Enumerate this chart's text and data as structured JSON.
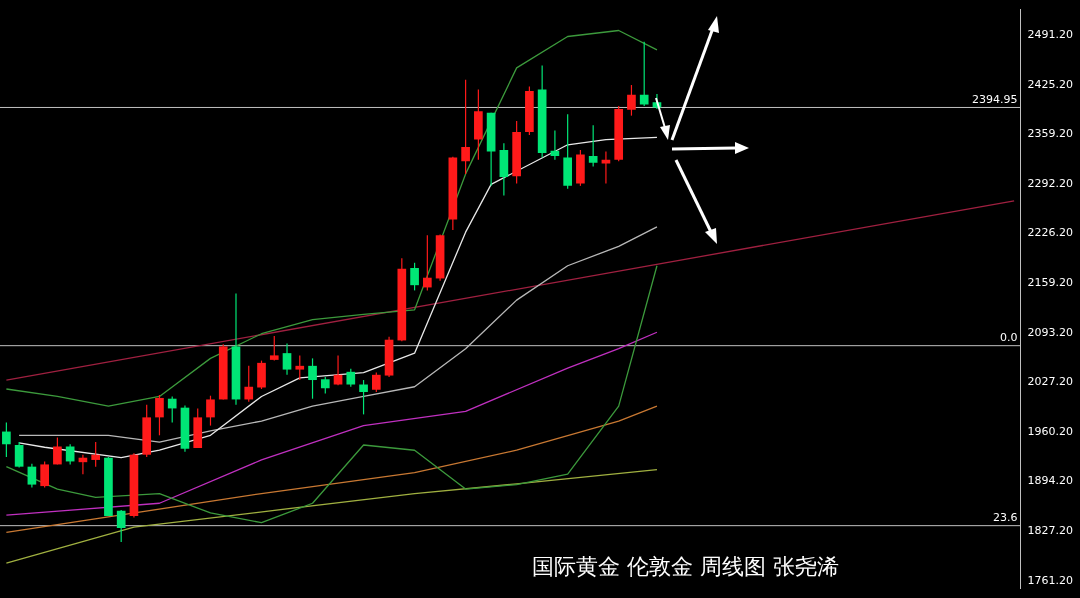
{
  "chart_data": {
    "type": "candlestick",
    "categories": [
      null,
      null,
      null,
      null,
      null,
      null,
      null,
      null,
      null,
      null,
      null,
      null,
      null,
      null,
      null,
      null,
      null,
      null,
      null,
      null,
      null,
      null,
      null,
      null,
      null,
      null,
      null,
      null,
      null,
      null,
      null,
      null,
      null,
      null,
      null,
      null,
      null,
      null,
      null,
      null,
      null,
      null,
      null,
      null,
      null,
      null,
      null,
      null,
      null,
      null,
      null,
      null,
      null,
      null,
      null,
      null,
      null,
      null,
      null,
      null,
      null,
      null,
      null,
      null,
      null,
      null,
      null,
      null,
      null,
      null,
      null,
      null,
      null,
      null,
      null,
      null,
      null,
      null,
      null,
      null
    ],
    "ohlc": [
      [
        1961,
        1973,
        1927,
        1944
      ],
      [
        1943,
        1947,
        1913,
        1914
      ],
      [
        1914,
        1918,
        1886,
        1890
      ],
      [
        1888,
        1921,
        1886,
        1917
      ],
      [
        1917,
        1953,
        1917,
        1941
      ],
      [
        1941,
        1944,
        1917,
        1921
      ],
      [
        1920,
        1930,
        1904,
        1926
      ],
      [
        1923,
        1947,
        1914,
        1930
      ],
      [
        1926,
        1927,
        1848,
        1848
      ],
      [
        1855,
        1856,
        1813,
        1832
      ],
      [
        1848,
        1932,
        1846,
        1930
      ],
      [
        1930,
        1997,
        1927,
        1980
      ],
      [
        1980,
        2010,
        1956,
        2006
      ],
      [
        2005,
        2008,
        1973,
        1992
      ],
      [
        1993,
        1996,
        1934,
        1938
      ],
      [
        1939,
        1992,
        1939,
        1980
      ],
      [
        1980,
        2009,
        1969,
        2004
      ],
      [
        2004,
        2078,
        2004,
        2075
      ],
      [
        2075,
        2146,
        1997,
        2004
      ],
      [
        2004,
        2049,
        2001,
        2021
      ],
      [
        2020,
        2056,
        2018,
        2053
      ],
      [
        2057,
        2089,
        2056,
        2063
      ],
      [
        2066,
        2079,
        2037,
        2044
      ],
      [
        2044,
        2063,
        2030,
        2049
      ],
      [
        2049,
        2059,
        2005,
        2030
      ],
      [
        2031,
        2034,
        2012,
        2019
      ],
      [
        2024,
        2063,
        2023,
        2037
      ],
      [
        2041,
        2045,
        2021,
        2024
      ],
      [
        2024,
        2030,
        1984,
        2014
      ],
      [
        2017,
        2040,
        2014,
        2037
      ],
      [
        2036,
        2088,
        2034,
        2084
      ],
      [
        2083,
        2193,
        2082,
        2179
      ],
      [
        2180,
        2187,
        2150,
        2157
      ],
      [
        2154,
        2224,
        2150,
        2167
      ],
      [
        2166,
        2225,
        2163,
        2224
      ],
      [
        2245,
        2329,
        2231,
        2328
      ],
      [
        2323,
        2432,
        2306,
        2342
      ],
      [
        2352,
        2419,
        2325,
        2390
      ],
      [
        2388,
        2388,
        2290,
        2336
      ],
      [
        2338,
        2347,
        2277,
        2302
      ],
      [
        2303,
        2377,
        2293,
        2362
      ],
      [
        2362,
        2423,
        2358,
        2417
      ],
      [
        2419,
        2451,
        2328,
        2334
      ],
      [
        2337,
        2364,
        2325,
        2330
      ],
      [
        2328,
        2386,
        2286,
        2290
      ],
      [
        2293,
        2338,
        2290,
        2332
      ],
      [
        2330,
        2371,
        2316,
        2321
      ],
      [
        2320,
        2336,
        2293,
        2325
      ],
      [
        2325,
        2397,
        2323,
        2393
      ],
      [
        2392,
        2425,
        2384,
        2412
      ],
      [
        2412,
        2483,
        2397,
        2399
      ],
      [
        2402,
        2413,
        2393,
        2395
      ],
      null,
      null,
      null,
      null,
      null,
      null,
      null,
      null,
      null,
      null,
      null,
      null,
      null,
      null,
      null,
      null,
      null,
      null,
      null,
      null,
      null,
      null,
      null,
      null,
      null,
      null,
      null,
      null
    ],
    "colors": [
      "#00e676",
      "#00e676",
      "#00e676",
      "#ff1a1a",
      "#ff1a1a",
      "#00e676",
      "#ff1a1a",
      "#ff1a1a",
      "#00e676",
      "#00e676",
      "#ff1a1a",
      "#ff1a1a",
      "#ff1a1a",
      "#00e676",
      "#00e676",
      "#ff1a1a",
      "#ff1a1a",
      "#ff1a1a",
      "#00e676",
      "#ff1a1a",
      "#ff1a1a",
      "#ff1a1a",
      "#00e676",
      "#ff1a1a",
      "#00e676",
      "#00e676",
      "#ff1a1a",
      "#00e676",
      "#00e676",
      "#ff1a1a",
      "#ff1a1a",
      "#ff1a1a",
      "#00e676",
      "#ff1a1a",
      "#ff1a1a",
      "#ff1a1a",
      "#ff1a1a",
      "#ff1a1a",
      "#00e676",
      "#00e676",
      "#ff1a1a",
      "#ff1a1a",
      "#00e676",
      "#00e676",
      "#00e676",
      "#ff1a1a",
      "#00e676",
      "#ff1a1a",
      "#ff1a1a",
      "#ff1a1a",
      "#00e676",
      "#00e676",
      null,
      null,
      null,
      null,
      null,
      null,
      null,
      null,
      null,
      null,
      null,
      null,
      null,
      null,
      null,
      null,
      null,
      null,
      null,
      null,
      null,
      null,
      null,
      null,
      null,
      null,
      null,
      null
    ],
    "series": [
      {
        "type": "line",
        "color": "#e8e8e8",
        "values": [
          null,
          1946,
          null,
          1940,
          null,
          null,
          null,
          null,
          null,
          1926,
          null,
          null,
          1936,
          null,
          null,
          null,
          1956,
          null,
          null,
          null,
          2008,
          null,
          null,
          2033,
          null,
          null,
          null,
          null,
          2040,
          null,
          null,
          null,
          2066,
          null,
          null,
          null,
          2228,
          null,
          2292,
          null,
          null,
          null,
          null,
          null,
          2345,
          null,
          null,
          2352,
          null,
          null,
          null,
          2355,
          null,
          null,
          null,
          null,
          null,
          null,
          null,
          null,
          null,
          null,
          null,
          null,
          null,
          null,
          null,
          null,
          null,
          null,
          null,
          null,
          null,
          null,
          null,
          null,
          null,
          null,
          null,
          null
        ]
      },
      {
        "type": "line",
        "color": "#b8b8b8",
        "values": [
          null,
          1956,
          null,
          null,
          1956,
          null,
          null,
          null,
          1956,
          null,
          null,
          null,
          1947,
          null,
          null,
          null,
          1962,
          null,
          null,
          null,
          1975,
          null,
          null,
          null,
          1995,
          null,
          null,
          null,
          2008,
          null,
          null,
          null,
          2021,
          null,
          null,
          null,
          2072,
          null,
          null,
          null,
          2137,
          null,
          null,
          null,
          2183,
          null,
          null,
          null,
          2209,
          null,
          null,
          2235,
          null,
          null,
          null,
          null,
          null,
          null,
          null,
          null,
          null,
          null,
          null,
          null,
          null,
          null,
          null,
          null,
          null,
          null,
          null,
          null,
          null,
          null,
          null,
          null,
          null,
          null,
          null,
          null
        ]
      },
      {
        "type": "line",
        "color": "#3c9a3c",
        "values": [
          2018,
          null,
          null,
          null,
          2008,
          null,
          null,
          null,
          1995,
          null,
          null,
          null,
          2008,
          null,
          null,
          null,
          2059,
          null,
          null,
          null,
          2092,
          null,
          null,
          null,
          2111,
          null,
          null,
          null,
          2118,
          null,
          null,
          null,
          2124,
          null,
          null,
          null,
          2306,
          null,
          null,
          null,
          2448,
          null,
          null,
          null,
          2490,
          null,
          null,
          null,
          2498,
          null,
          null,
          2472,
          null,
          null,
          null,
          null,
          null,
          null,
          null,
          null,
          null,
          null,
          null,
          null,
          null,
          null,
          null,
          null,
          null,
          null,
          null,
          null,
          null,
          null,
          null,
          null,
          null,
          null,
          null,
          null
        ]
      },
      {
        "type": "line",
        "color": "#3c9a3c",
        "values": [
          1914,
          null,
          null,
          null,
          1884,
          null,
          null,
          1873,
          null,
          null,
          null,
          null,
          1878,
          null,
          null,
          null,
          1852,
          null,
          null,
          null,
          1839,
          null,
          null,
          null,
          1865,
          null,
          null,
          null,
          1943,
          null,
          null,
          null,
          1936,
          null,
          null,
          null,
          1884,
          null,
          null,
          null,
          1890,
          null,
          null,
          null,
          1904,
          null,
          null,
          null,
          1995,
          null,
          null,
          2183,
          null,
          null,
          null,
          null,
          null,
          null,
          null,
          null,
          null,
          null,
          null,
          null,
          null,
          null,
          null,
          null,
          null,
          null,
          null,
          null,
          null,
          null,
          null,
          null,
          null,
          null,
          null,
          null
        ]
      },
      {
        "type": "line",
        "color": "#c030c0",
        "values": [
          1849,
          null,
          null,
          null,
          null,
          null,
          null,
          null,
          null,
          null,
          null,
          null,
          1865,
          null,
          null,
          null,
          null,
          null,
          null,
          null,
          1923,
          null,
          null,
          null,
          null,
          null,
          null,
          null,
          1969,
          null,
          null,
          null,
          null,
          null,
          null,
          null,
          1988,
          null,
          null,
          null,
          null,
          null,
          null,
          null,
          2046,
          null,
          null,
          null,
          2072,
          null,
          null,
          2094,
          null,
          null,
          null,
          null,
          null,
          null,
          null,
          null,
          null,
          null,
          null,
          null,
          null,
          null,
          null,
          null,
          null,
          null,
          null,
          null,
          null,
          null,
          null,
          null,
          null,
          null,
          null,
          null
        ]
      },
      {
        "type": "line",
        "color": "#c87832",
        "values": [
          1826,
          null,
          null,
          null,
          null,
          null,
          null,
          null,
          null,
          null,
          null,
          null,
          null,
          null,
          null,
          null,
          null,
          null,
          null,
          null,
          1878,
          null,
          null,
          null,
          null,
          null,
          null,
          null,
          null,
          null,
          null,
          null,
          1906,
          null,
          null,
          null,
          null,
          null,
          null,
          null,
          1936,
          null,
          null,
          null,
          null,
          null,
          null,
          null,
          1975,
          null,
          null,
          1995,
          null,
          null,
          null,
          null,
          null,
          null,
          null,
          null,
          null,
          null,
          null,
          null,
          null,
          null,
          null,
          null,
          null,
          null,
          null,
          null,
          null,
          null,
          null,
          null,
          null,
          null,
          null,
          null
        ]
      },
      {
        "type": "line",
        "color": "#a0b040",
        "values": [
          1785,
          null,
          null,
          null,
          null,
          null,
          null,
          null,
          null,
          null,
          1833,
          null,
          null,
          null,
          null,
          null,
          null,
          null,
          null,
          null,
          null,
          null,
          null,
          null,
          null,
          null,
          null,
          null,
          null,
          null,
          null,
          null,
          1878,
          null,
          null,
          null,
          null,
          null,
          null,
          null,
          1891,
          null,
          null,
          null,
          null,
          null,
          null,
          null,
          null,
          null,
          null,
          1910,
          null,
          null,
          null,
          null,
          null,
          null,
          null,
          null,
          null,
          null,
          null,
          null,
          null,
          null,
          null,
          null,
          null,
          null,
          null,
          null,
          null,
          null,
          null,
          null,
          null,
          null,
          null,
          null
        ]
      },
      {
        "type": "line",
        "color": "#a02040",
        "values": [
          2030,
          null,
          null,
          null,
          null,
          null,
          null,
          null,
          null,
          null,
          null,
          null,
          null,
          null,
          null,
          null,
          null,
          null,
          null,
          null,
          null,
          null,
          null,
          null,
          null,
          null,
          null,
          null,
          null,
          null,
          null,
          null,
          null,
          null,
          null,
          null,
          null,
          null,
          null,
          null,
          null,
          null,
          null,
          null,
          null,
          null,
          null,
          null,
          null,
          null,
          null,
          null,
          null,
          null,
          null,
          null,
          null,
          null,
          null,
          null,
          null,
          null,
          null,
          null,
          null,
          null,
          null,
          null,
          null,
          null,
          null,
          null,
          null,
          null,
          null,
          null,
          null,
          null,
          null,
          2270
        ]
      }
    ],
    "ylim": [
      1751,
      2526
    ],
    "yticks": [
      {
        "value": 1761.2,
        "label": "1761.20"
      },
      {
        "value": 1827.2,
        "label": "1827.20"
      },
      {
        "value": 1894.2,
        "label": "1894.20"
      },
      {
        "value": 1960.2,
        "label": "1960.20"
      },
      {
        "value": 2027.2,
        "label": "2027.20"
      },
      {
        "value": 2093.2,
        "label": "2093.20"
      },
      {
        "value": 2159.2,
        "label": "2159.20"
      },
      {
        "value": 2226.2,
        "label": "2226.20"
      },
      {
        "value": 2292.2,
        "label": "2292.20"
      },
      {
        "value": 2359.2,
        "label": "2359.20"
      },
      {
        "value": 2425.2,
        "label": "2425.20"
      },
      {
        "value": 2491.2,
        "label": "2491.20"
      }
    ],
    "tick_labels": "y",
    "ref_lines": [
      {
        "axis": "y",
        "value": 2394.95,
        "label": "2394.95",
        "color": "#c0c0c0"
      },
      {
        "axis": "y",
        "value": 2076,
        "color": "#c0c0c0"
      },
      {
        "axis": "y",
        "value": 1835,
        "color": "#c0c0c0"
      }
    ],
    "annotations": [
      "国际黄金 伦敦金 周线图 张尧浠",
      {
        "text": "0.0",
        "y": 2076
      },
      {
        "text": "23.6",
        "y": 1835
      }
    ]
  }
}
